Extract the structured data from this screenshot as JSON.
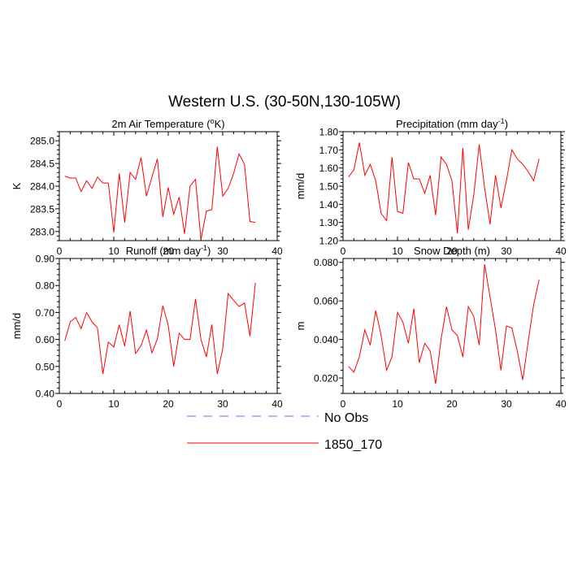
{
  "title": "Western U.S. (30-50N,130-105W)",
  "colors": {
    "model": "#ff0000",
    "obs": "#6a6aff",
    "axis": "#000000"
  },
  "legend": [
    {
      "name": "No Obs",
      "style": "dashed",
      "color": "#6a6aff"
    },
    {
      "name": "1850_170",
      "style": "solid",
      "color": "#ff0000"
    }
  ],
  "chart_data": [
    {
      "type": "line",
      "title_main": "2m Air Temperature (",
      "title_sup": "o",
      "title_tail": "K)",
      "ylabel": "K",
      "xlim": [
        0,
        40
      ],
      "ylim": [
        282.8,
        285.2
      ],
      "xticks": [
        0,
        10,
        20,
        30,
        40
      ],
      "xtick_labels": [
        "0",
        "10",
        "20",
        "30",
        "40"
      ],
      "yticks": [
        283.0,
        283.5,
        284.0,
        284.5,
        285.0
      ],
      "ytick_labels": [
        "283.0",
        "283.5",
        "284.0",
        "284.5",
        "285.0"
      ],
      "series": [
        {
          "name": "1850_170",
          "x": [
            1,
            2,
            3,
            4,
            5,
            6,
            7,
            8,
            9,
            10,
            11,
            12,
            13,
            14,
            15,
            16,
            17,
            18,
            19,
            20,
            21,
            22,
            23,
            24,
            25,
            26,
            27,
            28,
            29,
            30,
            31,
            32,
            33,
            34,
            35,
            36
          ],
          "y": [
            284.22,
            284.18,
            284.18,
            283.88,
            284.12,
            283.95,
            284.2,
            284.07,
            284.07,
            282.98,
            284.28,
            283.2,
            284.3,
            284.15,
            284.63,
            283.78,
            284.2,
            284.6,
            283.32,
            283.97,
            283.38,
            283.76,
            282.95,
            284.0,
            284.15,
            282.82,
            283.45,
            283.48,
            284.87,
            283.78,
            283.95,
            284.28,
            284.71,
            284.48,
            283.22,
            283.2
          ]
        }
      ]
    },
    {
      "type": "line",
      "title_main": "Precipitation (mm day",
      "title_sup": "-1",
      "title_tail": ")",
      "ylabel": "mm/d",
      "xlim": [
        0,
        40
      ],
      "ylim": [
        1.2,
        1.8
      ],
      "xticks": [
        0,
        10,
        20,
        30,
        40
      ],
      "xtick_labels": [
        "0",
        "10",
        "20",
        "30",
        "40"
      ],
      "yticks": [
        1.2,
        1.3,
        1.4,
        1.5,
        1.6,
        1.7,
        1.8
      ],
      "ytick_labels": [
        "1.20",
        "1.30",
        "1.40",
        "1.50",
        "1.60",
        "1.70",
        "1.80"
      ],
      "series": [
        {
          "name": "1850_170",
          "x": [
            1,
            2,
            3,
            4,
            5,
            6,
            7,
            8,
            9,
            10,
            11,
            12,
            13,
            14,
            15,
            16,
            17,
            18,
            19,
            20,
            21,
            22,
            23,
            24,
            25,
            26,
            27,
            28,
            29,
            30,
            31,
            32,
            33,
            34,
            35,
            36
          ],
          "y": [
            1.55,
            1.59,
            1.74,
            1.56,
            1.62,
            1.53,
            1.35,
            1.31,
            1.66,
            1.36,
            1.35,
            1.63,
            1.54,
            1.54,
            1.46,
            1.56,
            1.34,
            1.66,
            1.62,
            1.53,
            1.24,
            1.71,
            1.26,
            1.45,
            1.73,
            1.49,
            1.29,
            1.56,
            1.38,
            1.53,
            1.7,
            1.65,
            1.62,
            1.58,
            1.53,
            1.65
          ]
        }
      ]
    },
    {
      "type": "line",
      "title_main": "Runoff (mm day",
      "title_sup": "-1",
      "title_tail": ")",
      "ylabel": "mm/d",
      "xlim": [
        0,
        40
      ],
      "ylim": [
        0.4,
        0.9
      ],
      "xticks": [
        0,
        10,
        20,
        30,
        40
      ],
      "xtick_labels": [
        "0",
        "10",
        "20",
        "30",
        "40"
      ],
      "yticks": [
        0.4,
        0.5,
        0.6,
        0.7,
        0.8,
        0.9
      ],
      "ytick_labels": [
        "0.40",
        "0.50",
        "0.60",
        "0.70",
        "0.80",
        "0.90"
      ],
      "series": [
        {
          "name": "1850_170",
          "x": [
            1,
            2,
            3,
            4,
            5,
            6,
            7,
            8,
            9,
            10,
            11,
            12,
            13,
            14,
            15,
            16,
            17,
            18,
            19,
            20,
            21,
            22,
            23,
            24,
            25,
            26,
            27,
            28,
            29,
            30,
            31,
            32,
            33,
            34,
            35,
            36
          ],
          "y": [
            0.595,
            0.665,
            0.682,
            0.64,
            0.7,
            0.665,
            0.643,
            0.472,
            0.59,
            0.572,
            0.655,
            0.575,
            0.705,
            0.548,
            0.577,
            0.635,
            0.55,
            0.602,
            0.725,
            0.652,
            0.5,
            0.623,
            0.6,
            0.6,
            0.75,
            0.6,
            0.535,
            0.655,
            0.472,
            0.565,
            0.77,
            0.745,
            0.722,
            0.735,
            0.612,
            0.81
          ]
        }
      ]
    },
    {
      "type": "line",
      "title_main": "Snow Depth (m)",
      "title_sup": "",
      "title_tail": "",
      "ylabel": "m",
      "xlim": [
        0,
        40
      ],
      "ylim": [
        0.012,
        0.082
      ],
      "xticks": [
        0,
        10,
        20,
        30,
        40
      ],
      "xtick_labels": [
        "0",
        "10",
        "20",
        "30",
        "40"
      ],
      "yticks": [
        0.02,
        0.04,
        0.06,
        0.08
      ],
      "ytick_labels": [
        "0.020",
        "0.040",
        "0.060",
        "0.080"
      ],
      "series": [
        {
          "name": "1850_170",
          "x": [
            1,
            2,
            3,
            4,
            5,
            6,
            7,
            8,
            9,
            10,
            11,
            12,
            13,
            14,
            15,
            16,
            17,
            18,
            19,
            20,
            21,
            22,
            23,
            24,
            25,
            26,
            27,
            28,
            29,
            30,
            31,
            32,
            33,
            34,
            35,
            36
          ],
          "y": [
            0.026,
            0.023,
            0.031,
            0.045,
            0.037,
            0.055,
            0.042,
            0.024,
            0.031,
            0.054,
            0.049,
            0.038,
            0.056,
            0.028,
            0.038,
            0.034,
            0.017,
            0.04,
            0.057,
            0.045,
            0.042,
            0.031,
            0.057,
            0.052,
            0.037,
            0.079,
            0.062,
            0.045,
            0.024,
            0.047,
            0.046,
            0.034,
            0.019,
            0.039,
            0.058,
            0.071
          ]
        }
      ]
    }
  ]
}
